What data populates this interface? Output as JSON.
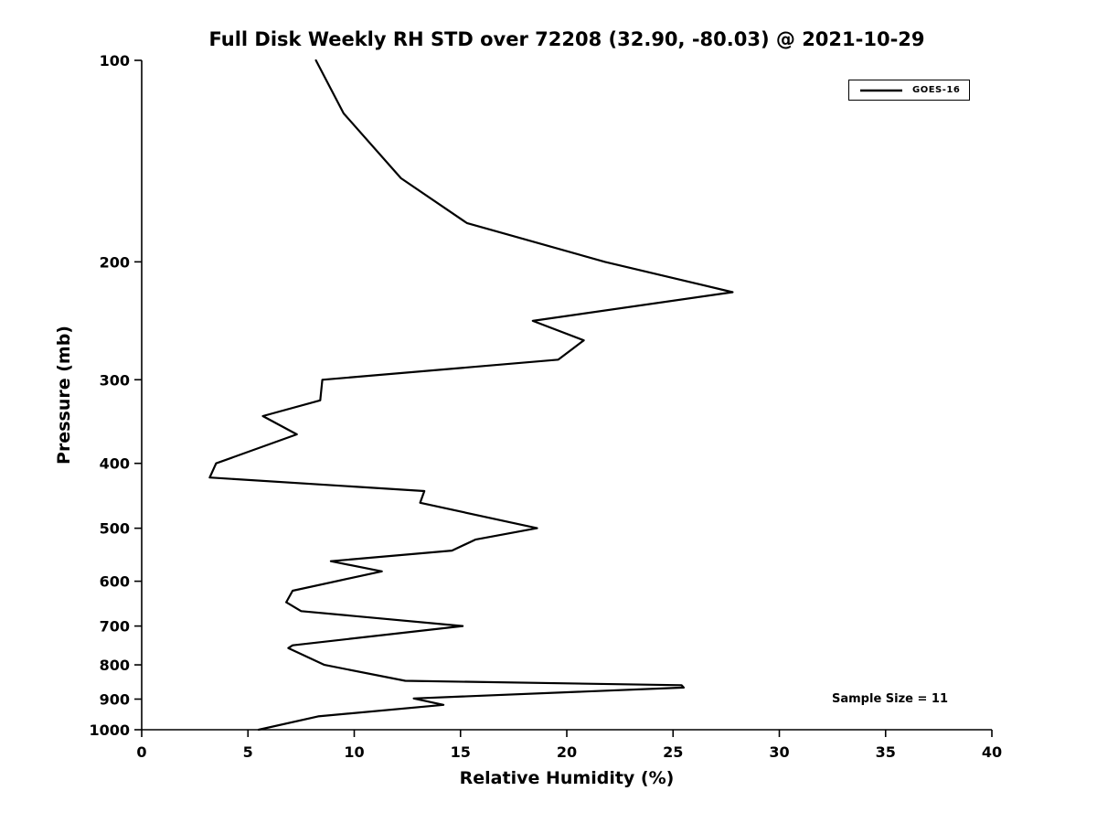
{
  "chart_data": {
    "type": "line",
    "title": "Full Disk Weekly RH STD over 72208 (32.90, -80.03) @ 2021-10-29",
    "xlabel": "Relative Humidity (%)",
    "ylabel": "Pressure (mb)",
    "x_ticks": [
      0,
      5,
      10,
      15,
      20,
      25,
      30,
      35,
      40
    ],
    "y_ticks": [
      100,
      200,
      300,
      400,
      500,
      600,
      700,
      800,
      900,
      1000
    ],
    "xlim": [
      0,
      40
    ],
    "ylim": [
      100,
      1000
    ],
    "y_scale": "log",
    "y_axis_inverted": true,
    "grid": false,
    "legend_position": "top-right",
    "annotation": "Sample Size = 11",
    "sample_size": 11,
    "series": [
      {
        "name": "GOES-16",
        "color": "#000000",
        "pressure_mb": [
          100,
          120,
          150,
          175,
          200,
          222,
          245,
          262,
          280,
          300,
          322,
          340,
          362,
          400,
          420,
          440,
          458,
          500,
          520,
          540,
          560,
          580,
          620,
          645,
          665,
          700,
          748,
          755,
          800,
          845,
          858,
          865,
          898,
          918,
          955,
          1000
        ],
        "rh_percent": [
          8.2,
          9.5,
          12.2,
          15.3,
          21.8,
          27.8,
          18.4,
          20.8,
          19.6,
          8.5,
          8.4,
          5.7,
          7.3,
          3.5,
          3.2,
          13.3,
          13.1,
          18.6,
          15.7,
          14.6,
          8.9,
          11.3,
          7.1,
          6.8,
          7.5,
          15.1,
          7.1,
          6.9,
          8.6,
          12.4,
          25.4,
          25.5,
          12.8,
          14.2,
          8.3,
          5.5
        ]
      }
    ]
  }
}
